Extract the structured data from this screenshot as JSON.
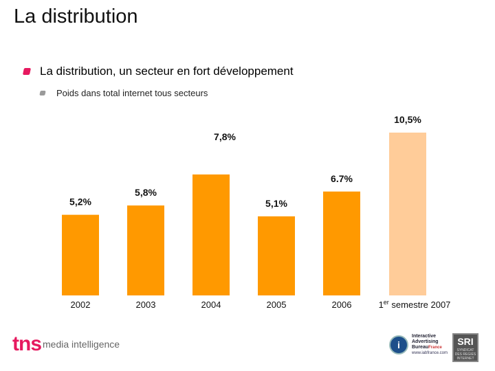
{
  "page": {
    "title": "La distribution",
    "bullet_main": "La distribution, un secteur en fort développement",
    "bullet_sub": "Poids dans total internet tous secteurs"
  },
  "chart_data": {
    "type": "bar",
    "title": "Poids dans total internet tous secteurs",
    "categories": [
      "2002",
      "2003",
      "2004",
      "2005",
      "2006",
      "1er semestre 2007"
    ],
    "values": [
      5.2,
      5.8,
      7.8,
      5.1,
      6.7,
      10.5
    ],
    "labels": [
      "5,2%",
      "5,8%",
      "7,8%",
      "5,1%",
      "6.7%",
      "10,5%"
    ],
    "colors": [
      "#ff9900",
      "#ff9900",
      "#ff9900",
      "#ff9900",
      "#ff9900",
      "#ffcc99"
    ],
    "ylabel": "%",
    "ylim": [
      0,
      12
    ],
    "grid": false,
    "legend": "none"
  },
  "footer": {
    "tns_logo": "tns",
    "tns_tagline": "media intelligence",
    "iab_line1": "Interactive",
    "iab_line2": "Advertising",
    "iab_line3": "Bureau",
    "iab_country": "France",
    "iab_url": "www.iabfrance.com",
    "sri_logo": "SRI",
    "sri_caption": "SYNDICAT DES REGIES INTERNET"
  }
}
